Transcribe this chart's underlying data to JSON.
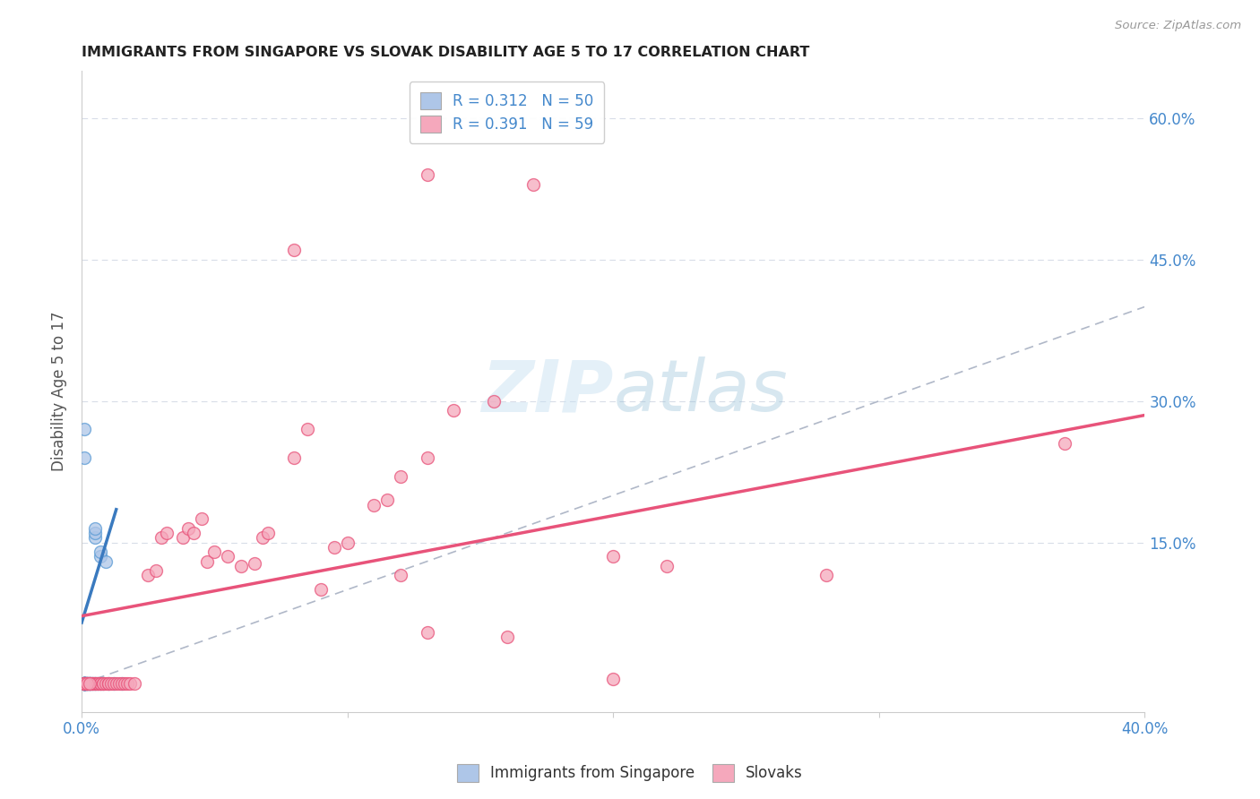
{
  "title": "IMMIGRANTS FROM SINGAPORE VS SLOVAK DISABILITY AGE 5 TO 17 CORRELATION CHART",
  "source": "Source: ZipAtlas.com",
  "ylabel": "Disability Age 5 to 17",
  "xlim": [
    0.0,
    0.4
  ],
  "ylim": [
    -0.03,
    0.65
  ],
  "ytick_positions": [
    0.0,
    0.15,
    0.3,
    0.45,
    0.6
  ],
  "ytick_labels": [
    "",
    "15.0%",
    "30.0%",
    "45.0%",
    "60.0%"
  ],
  "singapore_color": "#aec6e8",
  "slovak_color": "#f5a8bc",
  "singapore_edge_color": "#5b9bd5",
  "slovak_edge_color": "#e8537a",
  "singapore_line_color": "#3a7abf",
  "slovak_line_color": "#e8537a",
  "diagonal_color": "#b0b8c8",
  "watermark_color": "#c8dff0",
  "singapore_points": [
    [
      0.001,
      0.0
    ],
    [
      0.001,
      0.0
    ],
    [
      0.001,
      0.0
    ],
    [
      0.001,
      0.0
    ],
    [
      0.001,
      0.0
    ],
    [
      0.001,
      0.0
    ],
    [
      0.001,
      0.0
    ],
    [
      0.001,
      0.0
    ],
    [
      0.002,
      0.0
    ],
    [
      0.002,
      0.0
    ],
    [
      0.002,
      0.0
    ],
    [
      0.002,
      0.0
    ],
    [
      0.003,
      0.0
    ],
    [
      0.003,
      0.0
    ],
    [
      0.003,
      0.0
    ],
    [
      0.004,
      0.0
    ],
    [
      0.004,
      0.0
    ],
    [
      0.005,
      0.0
    ],
    [
      0.005,
      0.0
    ],
    [
      0.006,
      0.0
    ],
    [
      0.007,
      0.0
    ],
    [
      0.008,
      0.0
    ],
    [
      0.01,
      0.0
    ],
    [
      0.012,
      0.0
    ],
    [
      0.015,
      0.0
    ],
    [
      0.001,
      0.0
    ],
    [
      0.001,
      0.0
    ],
    [
      0.001,
      0.0
    ],
    [
      0.001,
      0.27
    ],
    [
      0.001,
      0.24
    ],
    [
      0.005,
      0.155
    ],
    [
      0.005,
      0.16
    ],
    [
      0.005,
      0.165
    ],
    [
      0.007,
      0.135
    ],
    [
      0.007,
      0.14
    ],
    [
      0.009,
      0.13
    ],
    [
      0.001,
      0.0
    ],
    [
      0.001,
      0.0
    ],
    [
      0.001,
      0.0
    ],
    [
      0.001,
      0.0
    ],
    [
      0.001,
      0.0
    ],
    [
      0.001,
      0.0
    ],
    [
      0.001,
      0.0
    ],
    [
      0.001,
      0.0
    ],
    [
      0.001,
      0.0
    ],
    [
      0.001,
      0.0
    ],
    [
      0.001,
      0.0
    ],
    [
      0.001,
      0.0
    ],
    [
      0.002,
      0.0
    ],
    [
      0.003,
      0.0
    ]
  ],
  "slovak_points": [
    [
      0.001,
      0.0
    ],
    [
      0.001,
      0.0
    ],
    [
      0.002,
      0.0
    ],
    [
      0.002,
      0.0
    ],
    [
      0.003,
      0.0
    ],
    [
      0.003,
      0.0
    ],
    [
      0.004,
      0.0
    ],
    [
      0.004,
      0.0
    ],
    [
      0.005,
      0.0
    ],
    [
      0.005,
      0.0
    ],
    [
      0.006,
      0.0
    ],
    [
      0.006,
      0.0
    ],
    [
      0.007,
      0.0
    ],
    [
      0.007,
      0.0
    ],
    [
      0.008,
      0.0
    ],
    [
      0.008,
      0.0
    ],
    [
      0.009,
      0.0
    ],
    [
      0.01,
      0.0
    ],
    [
      0.01,
      0.0
    ],
    [
      0.011,
      0.0
    ],
    [
      0.012,
      0.0
    ],
    [
      0.013,
      0.0
    ],
    [
      0.014,
      0.0
    ],
    [
      0.015,
      0.0
    ],
    [
      0.016,
      0.0
    ],
    [
      0.017,
      0.0
    ],
    [
      0.018,
      0.0
    ],
    [
      0.02,
      0.0
    ],
    [
      0.001,
      0.0
    ],
    [
      0.002,
      0.0
    ],
    [
      0.003,
      0.0
    ],
    [
      0.025,
      0.115
    ],
    [
      0.028,
      0.12
    ],
    [
      0.03,
      0.155
    ],
    [
      0.032,
      0.16
    ],
    [
      0.038,
      0.155
    ],
    [
      0.04,
      0.165
    ],
    [
      0.042,
      0.16
    ],
    [
      0.045,
      0.175
    ],
    [
      0.047,
      0.13
    ],
    [
      0.05,
      0.14
    ],
    [
      0.055,
      0.135
    ],
    [
      0.06,
      0.125
    ],
    [
      0.065,
      0.128
    ],
    [
      0.068,
      0.155
    ],
    [
      0.07,
      0.16
    ],
    [
      0.08,
      0.24
    ],
    [
      0.085,
      0.27
    ],
    [
      0.095,
      0.145
    ],
    [
      0.1,
      0.15
    ],
    [
      0.11,
      0.19
    ],
    [
      0.115,
      0.195
    ],
    [
      0.12,
      0.22
    ],
    [
      0.13,
      0.24
    ],
    [
      0.14,
      0.29
    ],
    [
      0.155,
      0.3
    ],
    [
      0.17,
      0.53
    ],
    [
      0.08,
      0.46
    ],
    [
      0.13,
      0.54
    ],
    [
      0.2,
      0.135
    ],
    [
      0.22,
      0.125
    ],
    [
      0.28,
      0.115
    ],
    [
      0.37,
      0.255
    ],
    [
      0.12,
      0.115
    ],
    [
      0.13,
      0.055
    ],
    [
      0.09,
      0.1
    ],
    [
      0.16,
      0.05
    ],
    [
      0.2,
      0.005
    ]
  ],
  "sg_line_x": [
    0.0,
    0.013
  ],
  "sg_line_y": [
    0.065,
    0.185
  ],
  "sk_line_x": [
    0.0,
    0.4
  ],
  "sk_line_y": [
    0.072,
    0.285
  ]
}
